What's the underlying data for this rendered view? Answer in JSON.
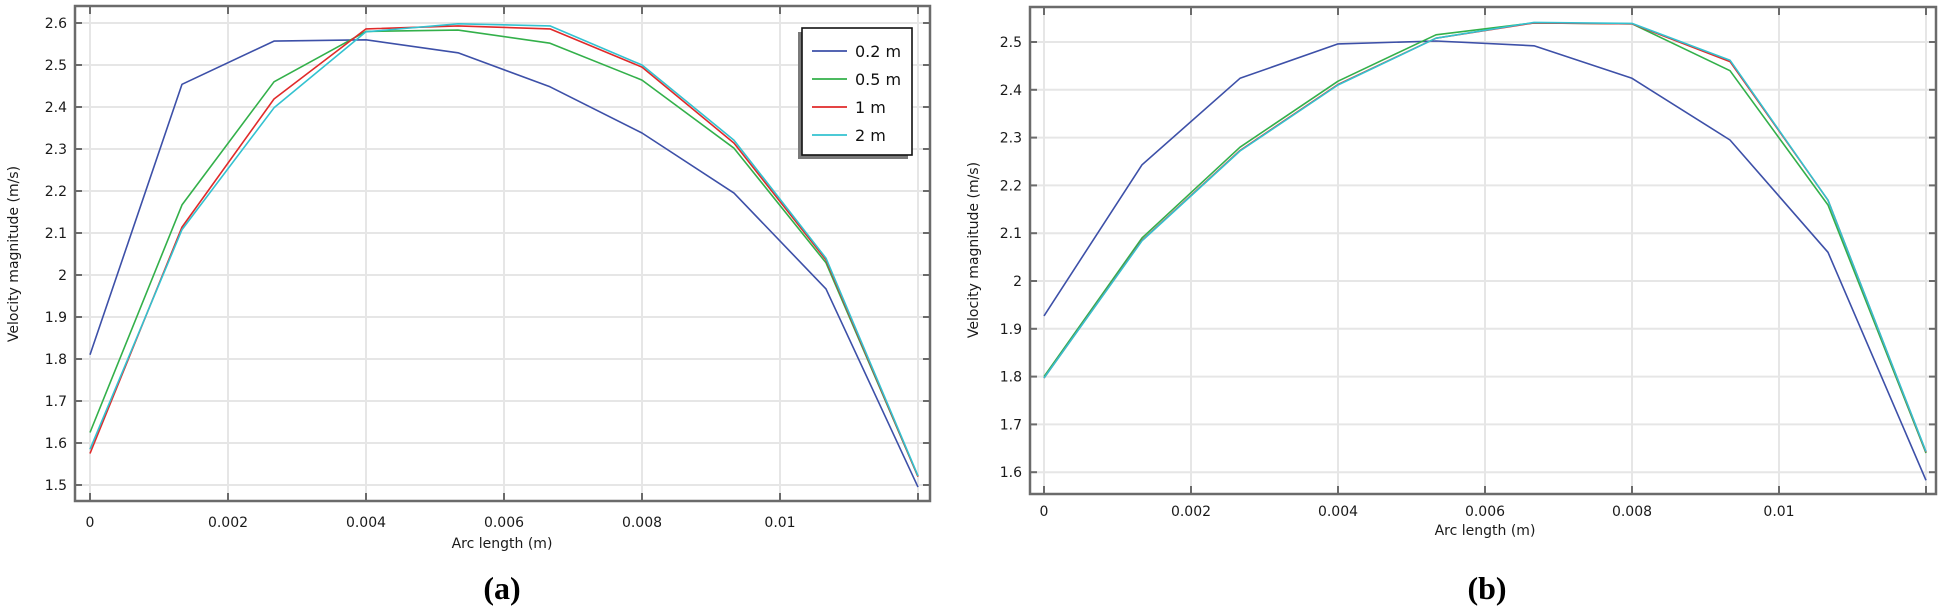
{
  "chart_data": [
    {
      "type": "line",
      "panel_label": "(a)",
      "title": "",
      "xlabel": "Arc length (m)",
      "ylabel": "Velocity magnitude (m/s)",
      "xlim": [
        -0.0002,
        0.0122
      ],
      "ylim": [
        1.45,
        2.64
      ],
      "xticks": [
        0,
        0.002,
        0.004,
        0.006,
        0.008,
        0.01
      ],
      "xtick_labels": [
        "0",
        "0.002",
        "0.004",
        "0.006",
        "0.008",
        "0.01"
      ],
      "yticks": [
        1.5,
        1.6,
        1.7,
        1.8,
        1.9,
        2.0,
        2.1,
        2.2,
        2.3,
        2.4,
        2.5,
        2.6
      ],
      "ytick_labels": [
        "1.5",
        "1.6",
        "1.7",
        "1.8",
        "1.9",
        "2",
        "2.1",
        "2.2",
        "2.3",
        "2.4",
        "2.5",
        "2.6"
      ],
      "grid": true,
      "legend_position": "upper right",
      "x": [
        0,
        0.001333,
        0.002667,
        0.004,
        0.005333,
        0.006667,
        0.008,
        0.009333,
        0.010667,
        0.012
      ],
      "series": [
        {
          "name": "0.2 m",
          "color": "#3d50a8",
          "values": [
            1.81,
            2.454,
            2.557,
            2.56,
            2.529,
            2.448,
            2.338,
            2.195,
            1.967,
            1.495
          ]
        },
        {
          "name": "0.5 m",
          "color": "#33b04a",
          "values": [
            1.625,
            2.167,
            2.46,
            2.58,
            2.583,
            2.552,
            2.464,
            2.302,
            2.029,
            1.52
          ]
        },
        {
          "name": "1 m",
          "color": "#e02a2a",
          "values": [
            1.575,
            2.114,
            2.419,
            2.586,
            2.593,
            2.586,
            2.495,
            2.314,
            2.036,
            1.52
          ]
        },
        {
          "name": "2 m",
          "color": "#33c2d0",
          "values": [
            1.585,
            2.108,
            2.398,
            2.579,
            2.598,
            2.593,
            2.5,
            2.321,
            2.04,
            1.522
          ]
        }
      ]
    },
    {
      "type": "line",
      "panel_label": "(b)",
      "title": "",
      "xlabel": "Arc length (m)",
      "ylabel": "Velocity magnitude (m/s)",
      "xlim": [
        -0.0002,
        0.0122
      ],
      "ylim": [
        1.55,
        2.57
      ],
      "xticks": [
        0,
        0.002,
        0.004,
        0.006,
        0.008,
        0.01
      ],
      "xtick_labels": [
        "0",
        "0.002",
        "0.004",
        "0.006",
        "0.008",
        "0.01"
      ],
      "yticks": [
        1.6,
        1.7,
        1.8,
        1.9,
        2.0,
        2.1,
        2.2,
        2.3,
        2.4,
        2.5
      ],
      "ytick_labels": [
        "1.6",
        "1.7",
        "1.8",
        "1.9",
        "2",
        "2.1",
        "2.2",
        "2.3",
        "2.4",
        "2.5"
      ],
      "grid": true,
      "legend_position": "none",
      "x": [
        0,
        0.001333,
        0.002667,
        0.004,
        0.005333,
        0.006667,
        0.008,
        0.009333,
        0.010667,
        0.012
      ],
      "series": [
        {
          "name": "0.2 m",
          "color": "#3d50a8",
          "values": [
            1.927,
            2.243,
            2.424,
            2.496,
            2.502,
            2.492,
            2.424,
            2.295,
            2.06,
            1.583
          ]
        },
        {
          "name": "0.5 m",
          "color": "#33b04a",
          "values": [
            1.8,
            2.09,
            2.28,
            2.418,
            2.515,
            2.54,
            2.538,
            2.44,
            2.159,
            1.64
          ]
        },
        {
          "name": "1 m",
          "color": "#e02a2a",
          "values": [
            1.797,
            2.085,
            2.273,
            2.411,
            2.508,
            2.54,
            2.538,
            2.459,
            2.169,
            1.642
          ]
        },
        {
          "name": "2 m",
          "color": "#33c2d0",
          "values": [
            1.797,
            2.084,
            2.272,
            2.41,
            2.508,
            2.541,
            2.539,
            2.462,
            2.169,
            1.643
          ]
        }
      ]
    }
  ],
  "legend": {
    "items": [
      "0.2 m",
      "0.5 m",
      "1 m",
      "2 m"
    ]
  },
  "panels": {
    "a": {
      "label": "(a)",
      "xlabel": "Arc length (m)",
      "ylabel": "Velocity magnitude (m/s)"
    },
    "b": {
      "label": "(b)",
      "xlabel": "Arc length (m)",
      "ylabel": "Velocity magnitude (m/s)"
    }
  }
}
